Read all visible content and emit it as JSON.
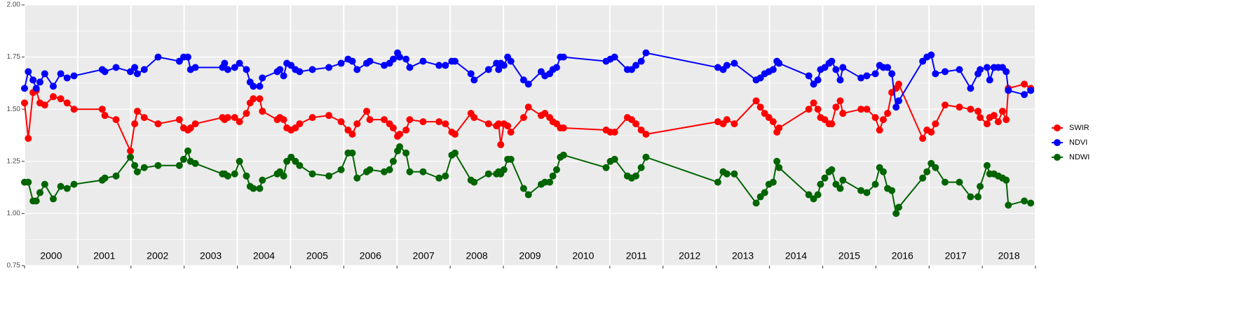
{
  "chart_data": {
    "type": "line",
    "x": [
      2000.0,
      2000.07,
      2000.16,
      2000.22,
      2000.29,
      2000.38,
      2000.54,
      2000.68,
      2000.8,
      2000.93,
      2001.46,
      2001.51,
      2001.72,
      2001.99,
      2002.07,
      2002.12,
      2002.25,
      2002.51,
      2002.91,
      2002.99,
      2003.07,
      2003.12,
      2003.21,
      2003.72,
      2003.76,
      2003.82,
      2003.95,
      2004.04,
      2004.17,
      2004.24,
      2004.3,
      2004.42,
      2004.47,
      2004.75,
      2004.8,
      2004.87,
      2004.93,
      2005.01,
      2005.09,
      2005.17,
      2005.41,
      2005.72,
      2005.95,
      2006.08,
      2006.16,
      2006.25,
      2006.43,
      2006.49,
      2006.76,
      2006.86,
      2006.93,
      2007.01,
      2007.05,
      2007.17,
      2007.24,
      2007.49,
      2007.79,
      2007.91,
      2008.03,
      2008.09,
      2008.39,
      2008.45,
      2008.72,
      2008.87,
      2008.91,
      2008.95,
      2009.01,
      2009.08,
      2009.14,
      2009.38,
      2009.47,
      2009.71,
      2009.78,
      2009.87,
      2009.93,
      2010.0,
      2010.07,
      2010.13,
      2010.93,
      2011.01,
      2011.09,
      2011.33,
      2011.41,
      2011.49,
      2011.59,
      2011.68,
      2013.03,
      2013.13,
      2013.2,
      2013.34,
      2013.75,
      2013.83,
      2013.91,
      2013.99,
      2014.07,
      2014.14,
      2014.18,
      2014.74,
      2014.83,
      2014.91,
      2014.96,
      2015.04,
      2015.12,
      2015.17,
      2015.25,
      2015.33,
      2015.38,
      2015.72,
      2015.83,
      2015.99,
      2016.07,
      2016.14,
      2016.22,
      2016.3,
      2016.38,
      2016.43,
      2016.88,
      2016.96,
      2017.04,
      2017.12,
      2017.3,
      2017.57,
      2017.78,
      2017.92,
      2017.96,
      2018.09,
      2018.14,
      2018.22,
      2018.3,
      2018.38,
      2018.45,
      2018.49,
      2018.79,
      2018.91
    ],
    "series": [
      {
        "name": "SWIR",
        "color": "#ff0000",
        "values": [
          1.53,
          1.36,
          1.58,
          1.59,
          1.53,
          1.52,
          1.56,
          1.55,
          1.53,
          1.5,
          1.5,
          1.47,
          1.45,
          1.3,
          1.43,
          1.49,
          1.46,
          1.43,
          1.45,
          1.41,
          1.4,
          1.41,
          1.43,
          1.46,
          1.45,
          1.46,
          1.46,
          1.44,
          1.48,
          1.53,
          1.55,
          1.55,
          1.49,
          1.45,
          1.46,
          1.45,
          1.41,
          1.4,
          1.41,
          1.43,
          1.46,
          1.47,
          1.44,
          1.4,
          1.38,
          1.43,
          1.49,
          1.45,
          1.45,
          1.43,
          1.41,
          1.37,
          1.38,
          1.4,
          1.45,
          1.44,
          1.44,
          1.43,
          1.39,
          1.38,
          1.48,
          1.46,
          1.43,
          1.42,
          1.43,
          1.33,
          1.43,
          1.42,
          1.39,
          1.46,
          1.51,
          1.47,
          1.48,
          1.46,
          1.44,
          1.43,
          1.41,
          1.41,
          1.4,
          1.39,
          1.39,
          1.46,
          1.45,
          1.43,
          1.4,
          1.38,
          1.44,
          1.43,
          1.45,
          1.43,
          1.54,
          1.51,
          1.48,
          1.46,
          1.44,
          1.39,
          1.41,
          1.5,
          1.53,
          1.5,
          1.46,
          1.45,
          1.43,
          1.43,
          1.51,
          1.54,
          1.48,
          1.5,
          1.5,
          1.46,
          1.4,
          1.45,
          1.48,
          1.58,
          1.6,
          1.62,
          1.36,
          1.4,
          1.39,
          1.43,
          1.52,
          1.51,
          1.5,
          1.49,
          1.46,
          1.43,
          1.46,
          1.47,
          1.44,
          1.49,
          1.45,
          1.6,
          1.62,
          1.6
        ]
      },
      {
        "name": "NDVI",
        "color": "#0000ff",
        "values": [
          1.6,
          1.68,
          1.64,
          1.6,
          1.63,
          1.67,
          1.61,
          1.67,
          1.65,
          1.66,
          1.69,
          1.68,
          1.7,
          1.68,
          1.7,
          1.67,
          1.69,
          1.75,
          1.73,
          1.75,
          1.75,
          1.69,
          1.7,
          1.7,
          1.72,
          1.69,
          1.7,
          1.72,
          1.69,
          1.63,
          1.61,
          1.61,
          1.65,
          1.68,
          1.69,
          1.66,
          1.72,
          1.71,
          1.69,
          1.68,
          1.69,
          1.7,
          1.72,
          1.74,
          1.73,
          1.69,
          1.72,
          1.73,
          1.71,
          1.72,
          1.74,
          1.77,
          1.75,
          1.74,
          1.7,
          1.73,
          1.71,
          1.71,
          1.73,
          1.73,
          1.67,
          1.64,
          1.69,
          1.72,
          1.69,
          1.72,
          1.71,
          1.75,
          1.73,
          1.64,
          1.62,
          1.68,
          1.66,
          1.67,
          1.69,
          1.7,
          1.75,
          1.75,
          1.73,
          1.74,
          1.75,
          1.69,
          1.69,
          1.71,
          1.73,
          1.77,
          1.7,
          1.69,
          1.71,
          1.72,
          1.64,
          1.65,
          1.67,
          1.68,
          1.69,
          1.73,
          1.72,
          1.66,
          1.62,
          1.64,
          1.69,
          1.7,
          1.72,
          1.73,
          1.69,
          1.64,
          1.7,
          1.65,
          1.66,
          1.67,
          1.71,
          1.7,
          1.7,
          1.67,
          1.51,
          1.54,
          1.73,
          1.75,
          1.76,
          1.67,
          1.68,
          1.69,
          1.6,
          1.67,
          1.69,
          1.7,
          1.64,
          1.7,
          1.7,
          1.7,
          1.68,
          1.59,
          1.57,
          1.59
        ]
      },
      {
        "name": "NDWI",
        "color": "#006400",
        "values": [
          1.15,
          1.15,
          1.06,
          1.06,
          1.1,
          1.14,
          1.07,
          1.13,
          1.12,
          1.14,
          1.16,
          1.17,
          1.18,
          1.27,
          1.23,
          1.2,
          1.22,
          1.23,
          1.23,
          1.26,
          1.3,
          1.25,
          1.24,
          1.19,
          1.19,
          1.18,
          1.19,
          1.25,
          1.18,
          1.13,
          1.12,
          1.12,
          1.16,
          1.19,
          1.2,
          1.18,
          1.25,
          1.27,
          1.25,
          1.23,
          1.19,
          1.18,
          1.21,
          1.29,
          1.29,
          1.17,
          1.2,
          1.21,
          1.2,
          1.21,
          1.25,
          1.3,
          1.32,
          1.29,
          1.2,
          1.2,
          1.17,
          1.18,
          1.28,
          1.29,
          1.16,
          1.15,
          1.19,
          1.19,
          1.2,
          1.19,
          1.21,
          1.26,
          1.26,
          1.12,
          1.09,
          1.14,
          1.15,
          1.15,
          1.18,
          1.21,
          1.27,
          1.28,
          1.22,
          1.25,
          1.26,
          1.18,
          1.17,
          1.18,
          1.22,
          1.27,
          1.15,
          1.2,
          1.19,
          1.19,
          1.05,
          1.08,
          1.1,
          1.14,
          1.15,
          1.25,
          1.22,
          1.09,
          1.07,
          1.09,
          1.14,
          1.17,
          1.2,
          1.21,
          1.14,
          1.12,
          1.16,
          1.11,
          1.1,
          1.14,
          1.22,
          1.2,
          1.12,
          1.11,
          1.0,
          1.03,
          1.17,
          1.2,
          1.24,
          1.22,
          1.15,
          1.15,
          1.08,
          1.08,
          1.13,
          1.23,
          1.19,
          1.19,
          1.18,
          1.17,
          1.16,
          1.04,
          1.06,
          1.05
        ]
      }
    ],
    "xlim": [
      2000,
      2019
    ],
    "xticks": [
      2000,
      2001,
      2002,
      2003,
      2004,
      2005,
      2006,
      2007,
      2008,
      2009,
      2010,
      2011,
      2012,
      2013,
      2014,
      2015,
      2016,
      2017,
      2018,
      2019
    ],
    "year_labels": [
      {
        "value": 2000.5,
        "label": "2000"
      },
      {
        "value": 2001.5,
        "label": "2001"
      },
      {
        "value": 2002.5,
        "label": "2002"
      },
      {
        "value": 2003.5,
        "label": "2003"
      },
      {
        "value": 2004.5,
        "label": "2004"
      },
      {
        "value": 2005.5,
        "label": "2005"
      },
      {
        "value": 2006.5,
        "label": "2006"
      },
      {
        "value": 2007.5,
        "label": "2007"
      },
      {
        "value": 2008.5,
        "label": "2008"
      },
      {
        "value": 2009.5,
        "label": "2009"
      },
      {
        "value": 2010.5,
        "label": "2010"
      },
      {
        "value": 2011.5,
        "label": "2011"
      },
      {
        "value": 2012.5,
        "label": "2012"
      },
      {
        "value": 2013.5,
        "label": "2013"
      },
      {
        "value": 2014.5,
        "label": "2014"
      },
      {
        "value": 2015.5,
        "label": "2015"
      },
      {
        "value": 2016.5,
        "label": "2016"
      },
      {
        "value": 2017.5,
        "label": "2017"
      },
      {
        "value": 2018.5,
        "label": "2018"
      }
    ],
    "ylim": [
      0.75,
      2.0
    ],
    "yticks": [
      {
        "value": 0.75,
        "label": "0.75"
      },
      {
        "value": 1.0,
        "label": "1.00"
      },
      {
        "value": 1.25,
        "label": "1.25"
      },
      {
        "value": 1.5,
        "label": "1.50"
      },
      {
        "value": 1.75,
        "label": "1.75"
      },
      {
        "value": 2.0,
        "label": "2.00"
      }
    ],
    "yminor": [
      0.875,
      1.125,
      1.375,
      1.625,
      1.875
    ],
    "grid": true,
    "legend": "right"
  }
}
